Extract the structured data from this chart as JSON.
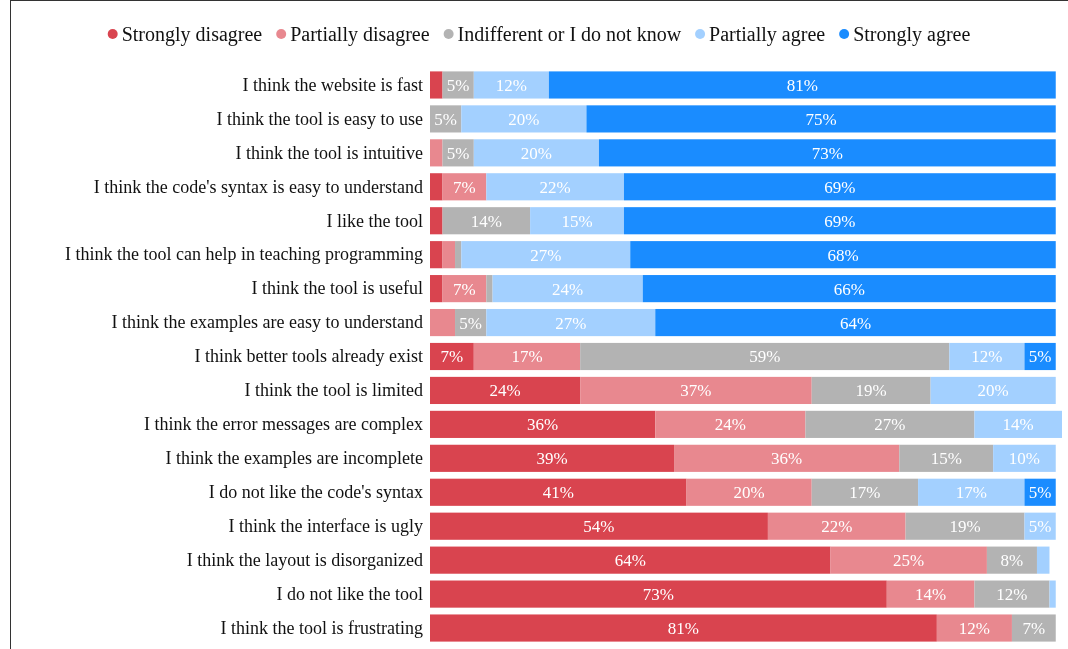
{
  "chart_data": {
    "type": "bar",
    "orientation": "horizontal",
    "stacked": true,
    "legend": "top",
    "tick_labels": "y",
    "xlim": [
      0,
      101
    ],
    "categories": [
      "I think the website is fast",
      "I think the tool is easy to use",
      "I think the tool is intuitive",
      "I think the code's syntax is easy to understand",
      "I like the tool",
      "I think the tool can help in teaching programming",
      "I think the tool is useful",
      "I think the examples are easy to understand",
      "I think better tools already exist",
      "I think the tool is limited",
      "I think the error messages are complex",
      "I think the examples are incomplete",
      "I do not like the code's syntax",
      "I think the interface is ugly",
      "I think the layout is disorganized",
      "I do not like the tool",
      "I think the tool is frustrating"
    ],
    "series": [
      {
        "name": "Strongly disagree",
        "color": "#d9444f",
        "values": [
          2,
          0,
          0,
          2,
          2,
          2,
          2,
          0,
          7,
          24,
          36,
          39,
          41,
          54,
          64,
          73,
          81
        ],
        "value_labels": [
          null,
          null,
          null,
          null,
          null,
          null,
          null,
          null,
          "7%",
          "24%",
          "36%",
          "39%",
          "41%",
          "54%",
          "64%",
          "73%",
          "81%"
        ]
      },
      {
        "name": "Partially disagree",
        "color": "#e8888f",
        "values": [
          0,
          0,
          2,
          7,
          0,
          2,
          7,
          4,
          17,
          37,
          24,
          36,
          20,
          22,
          25,
          14,
          12
        ],
        "value_labels": [
          null,
          null,
          null,
          "7%",
          null,
          null,
          "7%",
          null,
          "17%",
          "37%",
          "24%",
          "36%",
          "20%",
          "22%",
          "25%",
          "14%",
          "12%"
        ]
      },
      {
        "name": "Indifferent or I do not know",
        "color": "#b3b3b3",
        "values": [
          5,
          5,
          5,
          0,
          14,
          1,
          1,
          5,
          59,
          19,
          27,
          15,
          17,
          19,
          8,
          12,
          7
        ],
        "value_labels": [
          "5%",
          "5%",
          "5%",
          null,
          "14%",
          null,
          null,
          "5%",
          "59%",
          "19%",
          "27%",
          "15%",
          "17%",
          "19%",
          "8%",
          "12%",
          "7%"
        ]
      },
      {
        "name": "Partially agree",
        "color": "#a3d0ff",
        "values": [
          12,
          20,
          20,
          22,
          15,
          27,
          24,
          27,
          12,
          20,
          14,
          10,
          17,
          5,
          2,
          1,
          0
        ],
        "value_labels": [
          "12%",
          "20%",
          "20%",
          "22%",
          "15%",
          "27%",
          "24%",
          "27%",
          "12%",
          "20%",
          "14%",
          "10%",
          "17%",
          "5%",
          null,
          null,
          null
        ]
      },
      {
        "name": "Strongly agree",
        "color": "#1a8cff",
        "values": [
          81,
          75,
          73,
          69,
          69,
          68,
          66,
          64,
          5,
          0,
          0,
          0,
          5,
          0,
          0,
          0,
          0
        ],
        "value_labels": [
          "81%",
          "75%",
          "73%",
          "69%",
          "69%",
          "68%",
          "66%",
          "64%",
          "5%",
          null,
          null,
          null,
          "5%",
          null,
          null,
          null,
          null
        ]
      }
    ]
  }
}
